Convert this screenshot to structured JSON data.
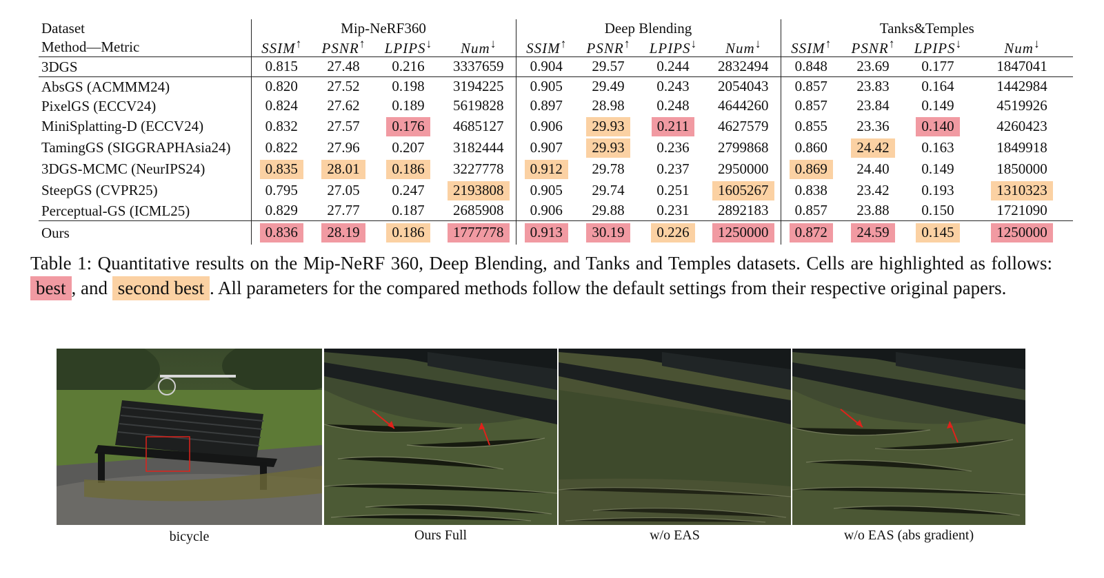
{
  "table": {
    "header_dataset": "Dataset",
    "header_method": "Method—Metric",
    "datasets": [
      "Mip-NeRF360",
      "Deep Blending",
      "Tanks&Temples"
    ],
    "metric_labels": [
      {
        "name": "SSIM",
        "arrow": "↑"
      },
      {
        "name": "PSNR",
        "arrow": "↑"
      },
      {
        "name": "LPIPS",
        "arrow": "↓"
      },
      {
        "name": "Num",
        "arrow": "↓"
      }
    ],
    "rows": [
      {
        "method": "3DGS",
        "values": [
          "0.815",
          "27.48",
          "0.216",
          "3337659",
          "0.904",
          "29.57",
          "0.244",
          "2832494",
          "0.848",
          "23.69",
          "0.177",
          "1847041"
        ],
        "hl": [
          "",
          "",
          "",
          "",
          "",
          "",
          "",
          "",
          "",
          "",
          "",
          ""
        ]
      },
      {
        "method": "AbsGS (ACMMM24)",
        "values": [
          "0.820",
          "27.52",
          "0.198",
          "3194225",
          "0.905",
          "29.49",
          "0.243",
          "2054043",
          "0.857",
          "23.83",
          "0.164",
          "1442984"
        ],
        "hl": [
          "",
          "",
          "",
          "",
          "",
          "",
          "",
          "",
          "",
          "",
          "",
          ""
        ]
      },
      {
        "method": "PixelGS (ECCV24)",
        "values": [
          "0.824",
          "27.62",
          "0.189",
          "5619828",
          "0.897",
          "28.98",
          "0.248",
          "4644260",
          "0.857",
          "23.84",
          "0.149",
          "4519926"
        ],
        "hl": [
          "",
          "",
          "",
          "",
          "",
          "",
          "",
          "",
          "",
          "",
          "",
          ""
        ]
      },
      {
        "method": "MiniSplatting-D (ECCV24)",
        "values": [
          "0.832",
          "27.57",
          "0.176",
          "4685127",
          "0.906",
          "29.93",
          "0.211",
          "4627579",
          "0.855",
          "23.36",
          "0.140",
          "4260423"
        ],
        "hl": [
          "",
          "",
          "best",
          "",
          "",
          "second",
          "best",
          "",
          "",
          "",
          "best",
          ""
        ]
      },
      {
        "method": "TamingGS (SIGGRAPHAsia24)",
        "values": [
          "0.822",
          "27.96",
          "0.207",
          "3182444",
          "0.907",
          "29.93",
          "0.236",
          "2799868",
          "0.860",
          "24.42",
          "0.163",
          "1849918"
        ],
        "hl": [
          "",
          "",
          "",
          "",
          "",
          "second",
          "",
          "",
          "",
          "second",
          "",
          ""
        ]
      },
      {
        "method": "3DGS-MCMC (NeurIPS24)",
        "values": [
          "0.835",
          "28.01",
          "0.186",
          "3227778",
          "0.912",
          "29.78",
          "0.237",
          "2950000",
          "0.869",
          "24.40",
          "0.149",
          "1850000"
        ],
        "hl": [
          "second",
          "second",
          "second",
          "",
          "second",
          "",
          "",
          "",
          "second",
          "",
          "",
          ""
        ]
      },
      {
        "method": "SteepGS (CVPR25)",
        "values": [
          "0.795",
          "27.05",
          "0.247",
          "2193808",
          "0.905",
          "29.74",
          "0.251",
          "1605267",
          "0.838",
          "23.42",
          "0.193",
          "1310323"
        ],
        "hl": [
          "",
          "",
          "",
          "second",
          "",
          "",
          "",
          "second",
          "",
          "",
          "",
          "second"
        ]
      },
      {
        "method": "Perceptual-GS (ICML25)",
        "values": [
          "0.829",
          "27.77",
          "0.187",
          "2685908",
          "0.906",
          "29.88",
          "0.231",
          "2892183",
          "0.857",
          "23.88",
          "0.150",
          "1721090"
        ],
        "hl": [
          "",
          "",
          "",
          "",
          "",
          "",
          "",
          "",
          "",
          "",
          "",
          ""
        ]
      },
      {
        "method": "Ours",
        "values": [
          "0.836",
          "28.19",
          "0.186",
          "1777778",
          "0.913",
          "30.19",
          "0.226",
          "1250000",
          "0.872",
          "24.59",
          "0.145",
          "1250000"
        ],
        "hl": [
          "best",
          "best",
          "second",
          "best",
          "best",
          "best",
          "second",
          "best",
          "best",
          "best",
          "second",
          "best"
        ]
      }
    ]
  },
  "caption": {
    "part1": "Table 1: Quantitative results on the Mip-NeRF 360, Deep Blending, and Tanks and Temples datasets. Cells are highlighted as follows: ",
    "best_label": "best",
    "part2": ", and ",
    "second_label": "second best",
    "part3": ". All parameters for the compared methods follow the default settings from their respective original papers."
  },
  "colors": {
    "best": "#f19aa2",
    "second": "#fbd1a3"
  },
  "figure": {
    "labels": [
      "bicycle",
      "Ours Full",
      "w/o EAS",
      "w/o EAS (abs gradient)"
    ]
  }
}
